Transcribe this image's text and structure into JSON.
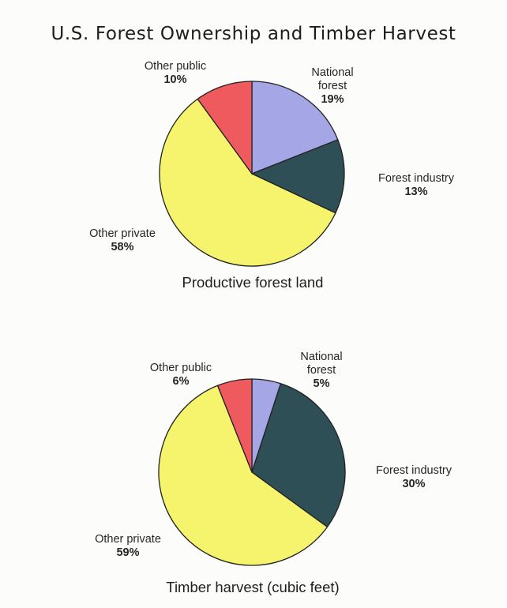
{
  "page": {
    "title": "U.S. Forest Ownership and Timber Harvest"
  },
  "colors": {
    "national_forest": "#a4a6e6",
    "forest_industry": "#2e4f55",
    "other_private": "#f6f46c",
    "other_public": "#ef5a5f",
    "outline": "#222222"
  },
  "chart_data": [
    {
      "type": "pie",
      "title": "Productive forest land",
      "slices": [
        {
          "label": [
            "National",
            "forest"
          ],
          "value": 19,
          "value_text": "19%",
          "color": "#a4a6e6"
        },
        {
          "label": [
            "Forest industry"
          ],
          "value": 13,
          "value_text": "13%",
          "color": "#2e4f55"
        },
        {
          "label": [
            "Other private"
          ],
          "value": 58,
          "value_text": "58%",
          "color": "#f6f46c"
        },
        {
          "label": [
            "Other public"
          ],
          "value": 10,
          "value_text": "10%",
          "color": "#ef5a5f"
        }
      ]
    },
    {
      "type": "pie",
      "title": "Timber harvest (cubic feet)",
      "slices": [
        {
          "label": [
            "National",
            "forest"
          ],
          "value": 5,
          "value_text": "5%",
          "color": "#a4a6e6"
        },
        {
          "label": [
            "Forest industry"
          ],
          "value": 30,
          "value_text": "30%",
          "color": "#2e4f55"
        },
        {
          "label": [
            "Other private"
          ],
          "value": 59,
          "value_text": "59%",
          "color": "#f6f46c"
        },
        {
          "label": [
            "Other public"
          ],
          "value": 6,
          "value_text": "6%",
          "color": "#ef5a5f"
        }
      ]
    }
  ]
}
